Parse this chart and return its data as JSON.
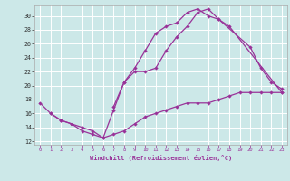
{
  "xlabel": "Windchill (Refroidissement éolien,°C)",
  "bg_color": "#cce8e8",
  "grid_color": "#ffffff",
  "line_color": "#993399",
  "xlim": [
    -0.5,
    23.5
  ],
  "ylim": [
    11.5,
    31.5
  ],
  "xticks": [
    0,
    1,
    2,
    3,
    4,
    5,
    6,
    7,
    8,
    9,
    10,
    11,
    12,
    13,
    14,
    15,
    16,
    17,
    18,
    19,
    20,
    21,
    22,
    23
  ],
  "yticks": [
    12,
    14,
    16,
    18,
    20,
    22,
    24,
    26,
    28,
    30
  ],
  "curve1_x": [
    0,
    1,
    2,
    3,
    4,
    5,
    6,
    7,
    8,
    9,
    10,
    11,
    12,
    13,
    14,
    15,
    16,
    17,
    18,
    19,
    20,
    21,
    22,
    23
  ],
  "curve1_y": [
    17.5,
    16.0,
    15.0,
    14.5,
    13.5,
    13.0,
    12.5,
    13.0,
    13.5,
    14.5,
    15.5,
    16.0,
    16.5,
    17.0,
    17.5,
    17.5,
    17.5,
    18.0,
    18.5,
    19.0,
    19.0,
    19.0,
    19.0,
    19.0
  ],
  "curve2_x": [
    1,
    2,
    3,
    4,
    5,
    6,
    7,
    8,
    9,
    10,
    11,
    12,
    13,
    14,
    15,
    16,
    17,
    20,
    21,
    22,
    23
  ],
  "curve2_y": [
    16.0,
    15.0,
    14.5,
    14.0,
    13.5,
    12.5,
    16.5,
    20.5,
    22.0,
    22.0,
    22.5,
    25.0,
    27.0,
    28.5,
    30.5,
    31.0,
    29.5,
    25.5,
    22.5,
    20.5,
    19.5
  ],
  "curve3_x": [
    7,
    8,
    9,
    10,
    11,
    12,
    13,
    14,
    15,
    16,
    17,
    18,
    23
  ],
  "curve3_y": [
    17.0,
    20.5,
    22.5,
    25.0,
    27.5,
    28.5,
    29.0,
    30.5,
    31.0,
    30.0,
    29.5,
    28.5,
    19.0
  ]
}
